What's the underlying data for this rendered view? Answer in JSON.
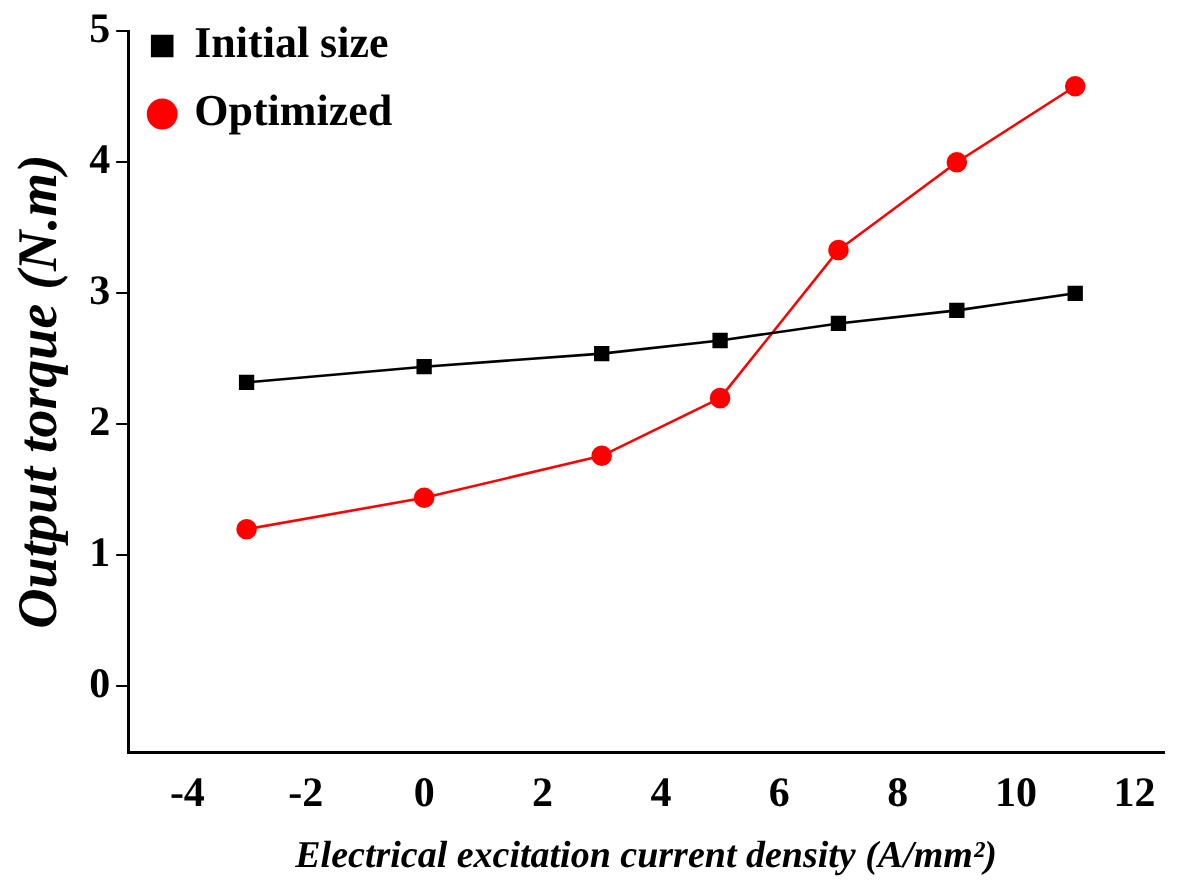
{
  "chart_data": {
    "type": "line",
    "xlabel": "Electrical excitation current density (A/mm²)",
    "ylabel": "Output torque (N.m)",
    "x": [
      -3,
      0,
      3,
      5,
      7,
      9,
      11
    ],
    "series": [
      {
        "name": "Initial size",
        "color": "#000000",
        "marker": "square",
        "values": [
          2.32,
          2.44,
          2.54,
          2.64,
          2.77,
          2.87,
          3.0
        ]
      },
      {
        "name": "Optimized",
        "color": "#ff0000",
        "marker": "circle",
        "values": [
          1.2,
          1.44,
          1.76,
          2.2,
          3.33,
          4.0,
          4.58
        ]
      }
    ],
    "xlim": [
      -5,
      12.5
    ],
    "xticks": [
      -4,
      -2,
      0,
      2,
      4,
      6,
      8,
      10,
      12
    ],
    "ylim": [
      -0.5,
      5
    ],
    "yticks": [
      0,
      1,
      2,
      3,
      4,
      5
    ],
    "grid": false,
    "legend": "top left"
  }
}
